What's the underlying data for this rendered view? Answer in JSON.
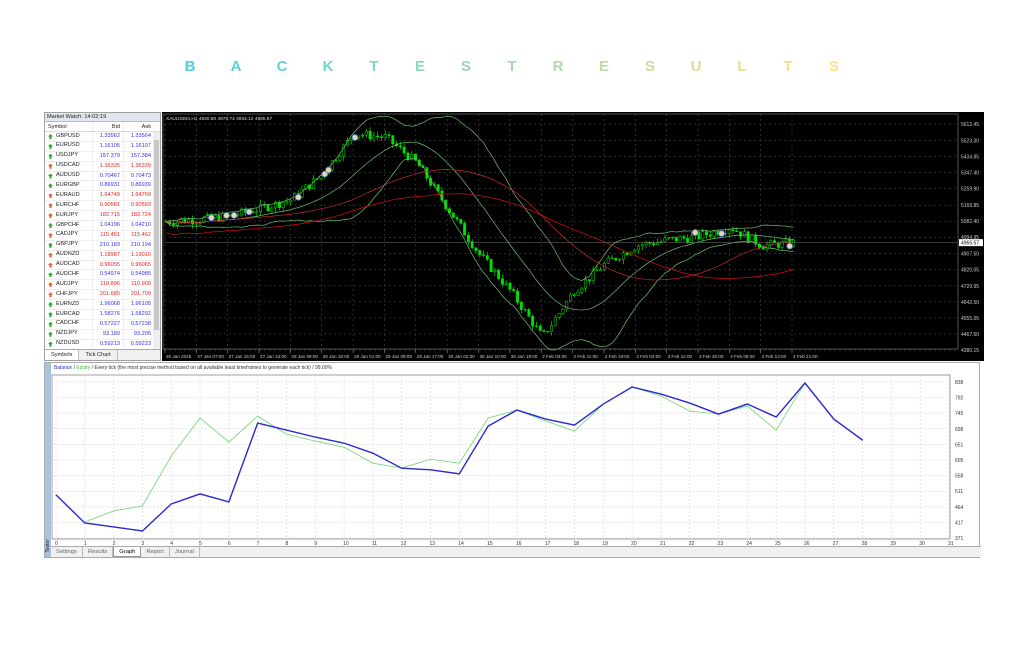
{
  "title": {
    "letters": [
      "B",
      "A",
      "C",
      "K",
      "T",
      "E",
      "S",
      "T",
      "R",
      "E",
      "S",
      "U",
      "L",
      "T",
      "S"
    ],
    "gradient": [
      "#4dd0e1",
      "#ffe082"
    ]
  },
  "market_watch": {
    "header": "Market Watch: 14:02:19",
    "columns": [
      "Symbol",
      "Bid",
      "Ask"
    ],
    "rows": [
      {
        "symbol": "GBPUSD",
        "bid": "1.33562",
        "ask": "1.33564",
        "dir": "up"
      },
      {
        "symbol": "EURUSD",
        "bid": "1.16105",
        "ask": "1.16107",
        "dir": "up"
      },
      {
        "symbol": "USDJPY",
        "bid": "157.379",
        "ask": "157.384",
        "dir": "up"
      },
      {
        "symbol": "USDCAD",
        "bid": "1.36335",
        "ask": "1.36339",
        "dir": "down"
      },
      {
        "symbol": "AUDUSD",
        "bid": "0.70467",
        "ask": "0.70473",
        "dir": "up"
      },
      {
        "symbol": "EURGBP",
        "bid": "0.86931",
        "ask": "0.86939",
        "dir": "up"
      },
      {
        "symbol": "EURAUD",
        "bid": "1.64749",
        "ask": "1.64769",
        "dir": "down"
      },
      {
        "symbol": "EURCHF",
        "bid": "0.90581",
        "ask": "0.90593",
        "dir": "down"
      },
      {
        "symbol": "EURJPY",
        "bid": "182.715",
        "ask": "182.724",
        "dir": "down"
      },
      {
        "symbol": "GBPCHF",
        "bid": "1.04196",
        "ask": "1.04210",
        "dir": "up"
      },
      {
        "symbol": "CADJPY",
        "bid": "115.451",
        "ask": "115.462",
        "dir": "down"
      },
      {
        "symbol": "GBPJPY",
        "bid": "210.183",
        "ask": "210.194",
        "dir": "up"
      },
      {
        "symbol": "AUDNZD",
        "bid": "1.18987",
        "ask": "1.19010",
        "dir": "down"
      },
      {
        "symbol": "AUDCAD",
        "bid": "0.96055",
        "ask": "0.96065",
        "dir": "down"
      },
      {
        "symbol": "AUDCHF",
        "bid": "0.54974",
        "ask": "0.54985",
        "dir": "up"
      },
      {
        "symbol": "AUDJPY",
        "bid": "110.896",
        "ask": "110.909",
        "dir": "down"
      },
      {
        "symbol": "CHFJPY",
        "bid": "201.685",
        "ask": "201.709",
        "dir": "down"
      },
      {
        "symbol": "EURNZD",
        "bid": "1.96068",
        "ask": "1.96105",
        "dir": "up"
      },
      {
        "symbol": "EURCAD",
        "bid": "1.58276",
        "ask": "1.58292",
        "dir": "up"
      },
      {
        "symbol": "CADCHF",
        "bid": "0.57227",
        "ask": "0.57238",
        "dir": "up"
      },
      {
        "symbol": "NZDJPY",
        "bid": "93.189",
        "ask": "93.205",
        "dir": "up"
      },
      {
        "symbol": "NZDUSD",
        "bid": "0.59213",
        "ask": "0.59223",
        "dir": "up"
      }
    ],
    "tabs": [
      "Symbols",
      "Tick Chart"
    ],
    "colors": {
      "up": "#2f9e2f",
      "down": "#e0602a",
      "up_text": "#3333ee",
      "down_text": "#ee2222"
    }
  },
  "price_chart": {
    "header": "XAUUSDm,H1  4940.80 4970.74 4934.12 4965.57",
    "price_labels": [
      "5612.45",
      "5523.30",
      "5434.85",
      "5347.40",
      "5259.90",
      "5169.85",
      "5082.40",
      "4994.95",
      "4907.50",
      "4820.05",
      "4729.95",
      "4642.50",
      "4555.05",
      "4467.60",
      "4380.15"
    ],
    "current_price": "4965.57",
    "time_labels": [
      "26 Jan 2026",
      "27 Jan 07:00",
      "27 Jan 15:00",
      "27 Jan 23:00",
      "28 Jan 08:00",
      "28 Jan 16:00",
      "29 Jan 01:00",
      "29 Jan 09:00",
      "29 Jan 17:00",
      "30 Jan 02:00",
      "30 Jan 10:00",
      "30 Jan 18:00",
      "2 Feb 03:00",
      "2 Feb 11:00",
      "2 Feb 19:00",
      "3 Feb 04:00",
      "3 Feb 12:00",
      "3 Feb 20:00",
      "4 Feb 05:00",
      "4 Feb 13:00",
      "4 Feb 21:00"
    ],
    "price_path": [
      5080,
      5090,
      5110,
      5150,
      5200,
      5340,
      5560,
      5540,
      5400,
      5150,
      4900,
      4700,
      4450,
      4700,
      4850,
      4950,
      4980,
      5000,
      5050,
      4950,
      4965
    ],
    "colors": {
      "candle": "#00e000",
      "bands": "#6fbf6f",
      "ma": "#c01010"
    }
  },
  "tester": {
    "legend": {
      "balance": "Balance",
      "equity": "Equity",
      "rest": " / Every tick (the most precise method based on all available least timeframes to generate each tick) / 99.00%"
    },
    "strip_label": "Tester",
    "y_labels": [
      "838",
      "792",
      "745",
      "698",
      "651",
      "605",
      "558",
      "511",
      "464",
      "417",
      "371"
    ],
    "x_labels": [
      "0",
      "1",
      "2",
      "3",
      "4",
      "5",
      "6",
      "7",
      "8",
      "9",
      "10",
      "11",
      "12",
      "13",
      "14",
      "15",
      "16",
      "17",
      "18",
      "19",
      "20",
      "21",
      "22",
      "23",
      "24",
      "25",
      "26",
      "27",
      "28",
      "29",
      "30",
      "31"
    ],
    "tabs": [
      "Settings",
      "Results",
      "Graph",
      "Report",
      "Journal"
    ],
    "active_tab": "Graph"
  },
  "chart_data": {
    "type": "line",
    "x": [
      0,
      1,
      2,
      3,
      4,
      5,
      6,
      7,
      8,
      9,
      10,
      11,
      12,
      13,
      14,
      15,
      16,
      17,
      18,
      19,
      20,
      21,
      22,
      23,
      24,
      25,
      26,
      27,
      28
    ],
    "series": [
      {
        "name": "Balance",
        "color": "#2a2ad0",
        "values": [
          500,
          416,
          404,
          392,
          473,
          503,
          479,
          715,
          694,
          673,
          655,
          625,
          580,
          575,
          563,
          706,
          754,
          727,
          709,
          772,
          823,
          802,
          775,
          742,
          772,
          733,
          835,
          727,
          664
        ]
      },
      {
        "name": "Equity",
        "color": "#7ed87e",
        "values": [
          null,
          419,
          452,
          467,
          616,
          730,
          658,
          736,
          682,
          661,
          643,
          595,
          580,
          607,
          595,
          730,
          754,
          721,
          691,
          772,
          823,
          796,
          751,
          742,
          766,
          694,
          835,
          727,
          664
        ]
      }
    ],
    "ylim": [
      371,
      838
    ],
    "xlim": [
      0,
      31
    ],
    "grid": true
  }
}
